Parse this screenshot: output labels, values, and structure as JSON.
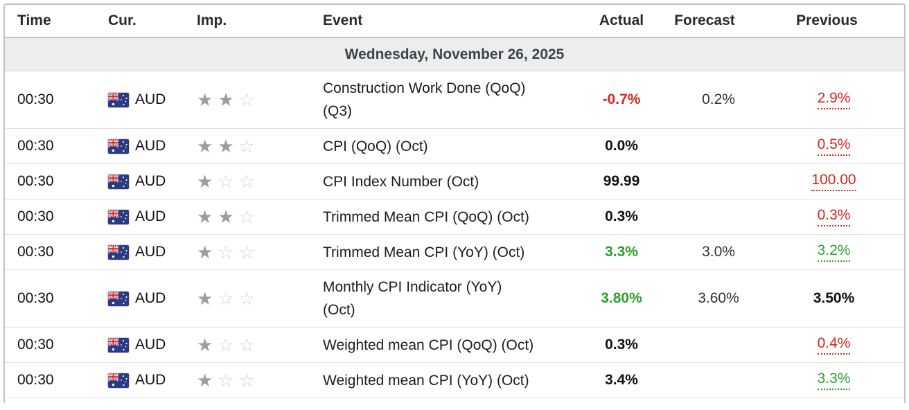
{
  "table": {
    "columns": [
      "Time",
      "Cur.",
      "Imp.",
      "Event",
      "Actual",
      "Forecast",
      "Previous"
    ],
    "date_header": "Wednesday, November 26, 2025"
  },
  "colors": {
    "negative": "#d9251d",
    "positive": "#2fa02d"
  },
  "rows": [
    {
      "time": "00:30",
      "currency": "AUD",
      "importance": 2,
      "event_lines": [
        "Construction Work Done (QoQ)",
        "(Q3)"
      ],
      "actual": {
        "text": "-0.7%",
        "state": "negative"
      },
      "forecast": "0.2%",
      "previous": {
        "text": "2.9%",
        "state": "negative",
        "revised": true
      }
    },
    {
      "time": "00:30",
      "currency": "AUD",
      "importance": 2,
      "event_lines": [
        "CPI (QoQ) (Oct)",
        ""
      ],
      "actual": {
        "text": "0.0%",
        "state": "neutral"
      },
      "forecast": "",
      "previous": {
        "text": "0.5%",
        "state": "negative",
        "revised": true
      }
    },
    {
      "time": "00:30",
      "currency": "AUD",
      "importance": 1,
      "event_lines": [
        "CPI Index Number (Oct)",
        ""
      ],
      "actual": {
        "text": "99.99",
        "state": "neutral"
      },
      "forecast": "",
      "previous": {
        "text": "100.00",
        "state": "negative",
        "revised": true
      }
    },
    {
      "time": "00:30",
      "currency": "AUD",
      "importance": 2,
      "event_lines": [
        "Trimmed Mean CPI (QoQ) (Oct)",
        ""
      ],
      "actual": {
        "text": "0.3%",
        "state": "neutral"
      },
      "forecast": "",
      "previous": {
        "text": "0.3%",
        "state": "negative",
        "revised": true
      }
    },
    {
      "time": "00:30",
      "currency": "AUD",
      "importance": 1,
      "event_lines": [
        "Trimmed Mean CPI (YoY) (Oct)",
        ""
      ],
      "actual": {
        "text": "3.3%",
        "state": "positive"
      },
      "forecast": "3.0%",
      "previous": {
        "text": "3.2%",
        "state": "positive",
        "revised": true
      }
    },
    {
      "time": "00:30",
      "currency": "AUD",
      "importance": 1,
      "event_lines": [
        "Monthly CPI Indicator (YoY)",
        "(Oct)"
      ],
      "actual": {
        "text": "3.80%",
        "state": "positive"
      },
      "forecast": "3.60%",
      "previous": {
        "text": "3.50%",
        "state": "neutral",
        "revised": false
      }
    },
    {
      "time": "00:30",
      "currency": "AUD",
      "importance": 1,
      "event_lines": [
        "Weighted mean CPI (QoQ) (Oct)",
        ""
      ],
      "actual": {
        "text": "0.3%",
        "state": "neutral"
      },
      "forecast": "",
      "previous": {
        "text": "0.4%",
        "state": "negative",
        "revised": true
      }
    },
    {
      "time": "00:30",
      "currency": "AUD",
      "importance": 1,
      "event_lines": [
        "Weighted mean CPI (YoY) (Oct)",
        ""
      ],
      "actual": {
        "text": "3.4%",
        "state": "neutral"
      },
      "forecast": "",
      "previous": {
        "text": "3.3%",
        "state": "positive",
        "revised": true
      }
    }
  ]
}
